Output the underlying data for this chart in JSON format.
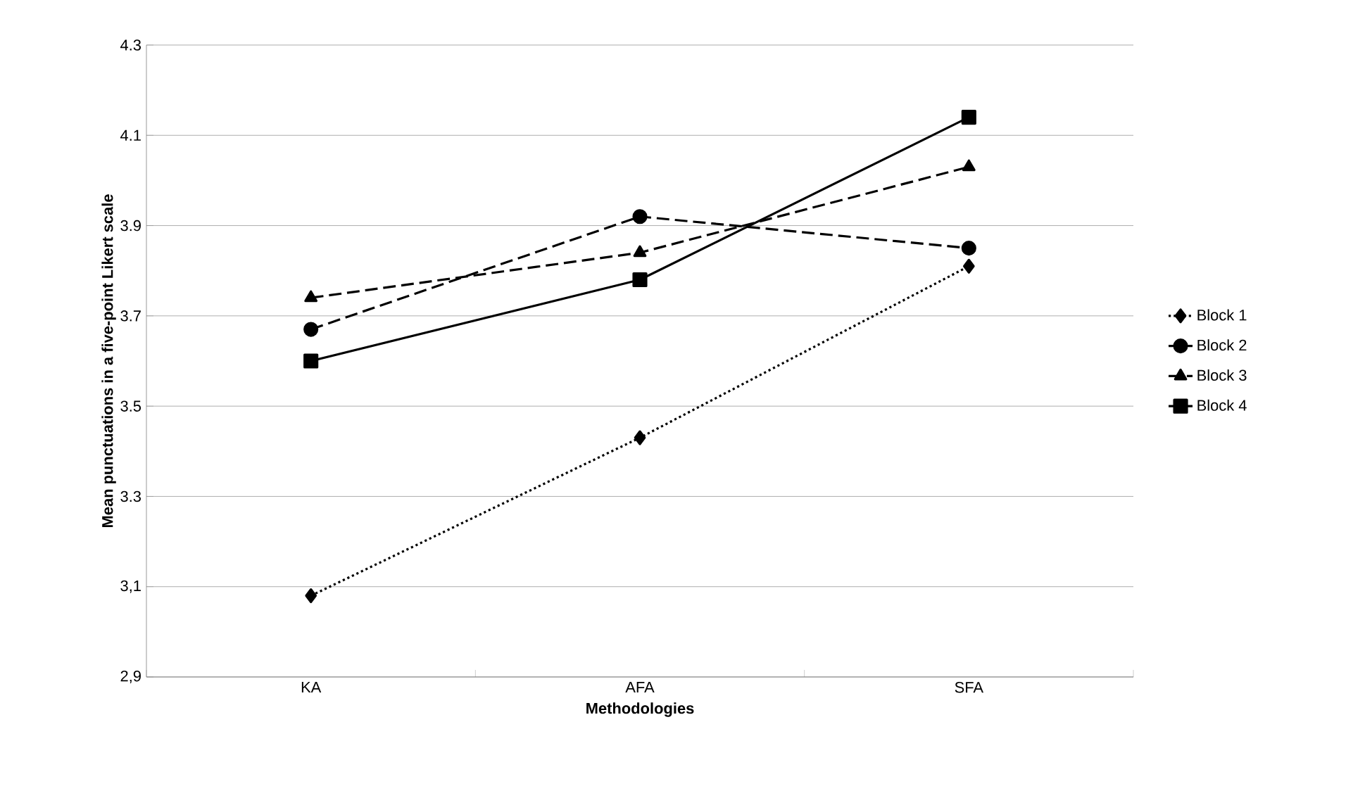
{
  "chart_data": {
    "type": "line",
    "xlabel": "Methodologies",
    "ylabel": "Mean punctuations in a five-point Likert scale",
    "categories": [
      "KA",
      "AFA",
      "SFA"
    ],
    "series": [
      {
        "name": "Block 1",
        "color": "#000000",
        "values": [
          3.08,
          3.43,
          3.81
        ],
        "marker": "diamond",
        "line_style": "dotted"
      },
      {
        "name": "Block 2",
        "color": "#000000",
        "values": [
          3.67,
          3.92,
          3.85
        ],
        "marker": "circle",
        "line_style": "dashed"
      },
      {
        "name": "Block 3",
        "color": "#000000",
        "values": [
          3.74,
          3.84,
          4.03
        ],
        "marker": "triangle",
        "line_style": "dashed"
      },
      {
        "name": "Block 4",
        "color": "#000000",
        "values": [
          3.6,
          3.78,
          4.14
        ],
        "marker": "square",
        "line_style": "solid"
      }
    ],
    "ylim": [
      2.9,
      4.3
    ],
    "yticks": [
      {
        "value": 2.9,
        "label": "2,9"
      },
      {
        "value": 3.1,
        "label": "3,1"
      },
      3.3,
      3.5,
      3.7,
      3.9,
      4.1,
      4.3
    ],
    "grid": "y",
    "legend": "right"
  }
}
